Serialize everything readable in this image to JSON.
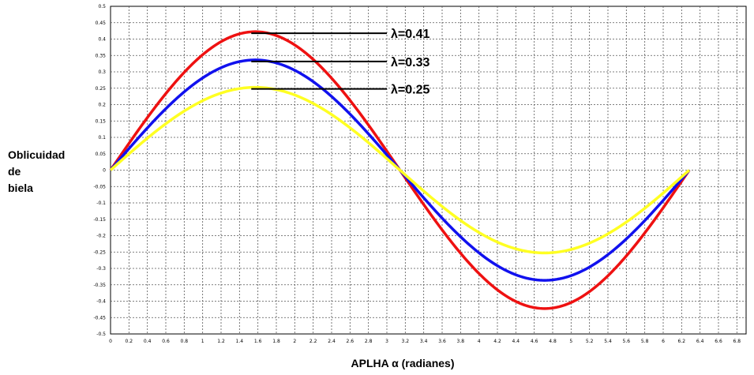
{
  "chart_data": {
    "type": "line",
    "title": "",
    "xlabel": "APLHA α (radianes)",
    "ylabel_lines": [
      "Oblicuidad",
      "de",
      "biela"
    ],
    "xlim": [
      0,
      6.9
    ],
    "ylim": [
      -0.5,
      0.5
    ],
    "x_ticks": [
      "0",
      "0.2",
      "0.4",
      "0.6",
      "0.8",
      "1",
      "1.2",
      "1.4",
      "1.6",
      "1.8",
      "2",
      "2.2",
      "2.4",
      "2.6",
      "2.8",
      "3",
      "3.2",
      "3.4",
      "3.6",
      "3.8",
      "4",
      "4.2",
      "4.4",
      "4.6",
      "4.8",
      "5",
      "5.2",
      "5.4",
      "5.6",
      "5.8",
      "6",
      "6.2",
      "6.4",
      "6.6",
      "6.8"
    ],
    "y_ticks": [
      "0.5",
      "0.45",
      "0.4",
      "0.35",
      "0.3",
      "0.25",
      "0.2",
      "0.15",
      "0.1",
      "0.05",
      "0",
      "-0.05",
      "-0.1",
      "-0.15",
      "-0.2",
      "-0.25",
      "-0.3",
      "-0.35",
      "-0.4",
      "-0.45",
      "-0.5"
    ],
    "grid": true,
    "legend": "none",
    "series": [
      {
        "lambda": 0.41,
        "color": "#ee1111",
        "x_start": 0,
        "x_end": 6.283,
        "function": "arcsin(lambda*sin(x))"
      },
      {
        "lambda": 0.33,
        "color": "#1111ee",
        "x_start": 0,
        "x_end": 6.283,
        "function": "arcsin(lambda*sin(x))"
      },
      {
        "lambda": 0.25,
        "color": "#ffff22",
        "x_start": 0,
        "x_end": 6.283,
        "function": "arcsin(lambda*sin(x))"
      }
    ],
    "annotations": [
      {
        "text": "λ=0.41",
        "series": 0
      },
      {
        "text": "λ=0.33",
        "series": 1
      },
      {
        "text": "λ=0.25",
        "series": 2
      }
    ]
  }
}
